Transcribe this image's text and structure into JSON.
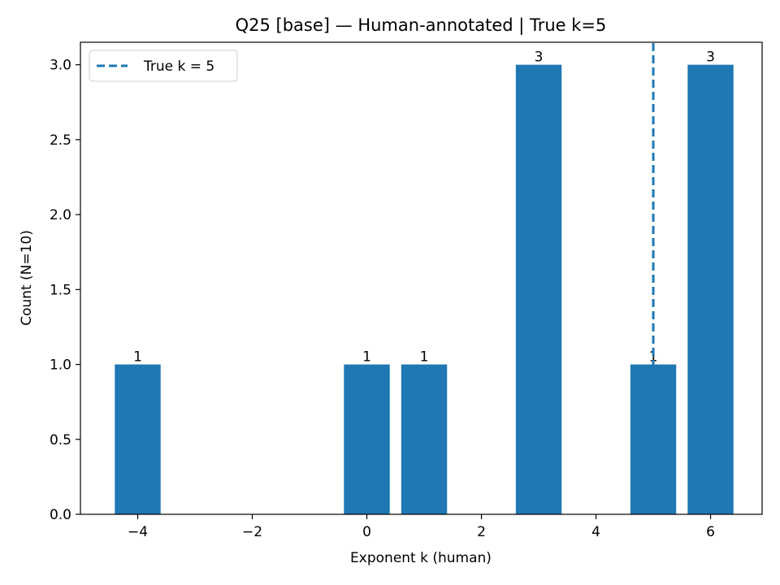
{
  "chart_data": {
    "type": "bar",
    "title": "Q25 [base] — Human-annotated | True k=5",
    "xlabel": "Exponent k (human)",
    "ylabel": "Count (N=10)",
    "x": [
      -4,
      0,
      1,
      3,
      5,
      6
    ],
    "values": [
      1,
      1,
      1,
      3,
      1,
      3
    ],
    "data_labels": [
      "1",
      "1",
      "1",
      "3",
      "1",
      "3"
    ],
    "xlim": [
      -5,
      6.9
    ],
    "ylim": [
      0,
      3.15
    ],
    "xticks": [
      -4,
      -2,
      0,
      2,
      4,
      6
    ],
    "xtick_labels": [
      "−4",
      "−2",
      "0",
      "2",
      "4",
      "6"
    ],
    "yticks": [
      0,
      0.5,
      1,
      1.5,
      2,
      2.5,
      3
    ],
    "ytick_labels": [
      "0.0",
      "0.5",
      "1.0",
      "1.5",
      "2.0",
      "2.5",
      "3.0"
    ],
    "bar_color": "#1f77b4",
    "reference_line": {
      "x": 5,
      "style": "dashed",
      "color": "#1f77b4",
      "label": "True k = 5"
    },
    "legend_placement": "upper-left",
    "grid": false
  }
}
